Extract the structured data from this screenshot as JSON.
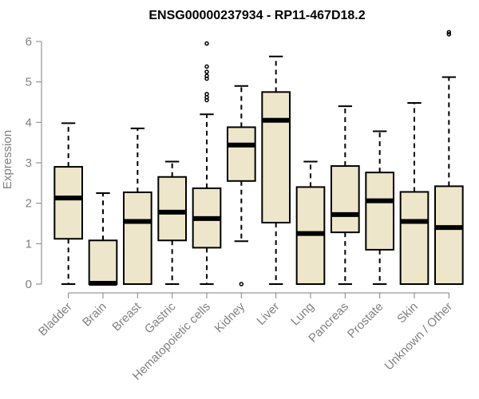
{
  "chart_data": {
    "type": "box",
    "title": "ENSG00000237934 - RP11-467D18.2",
    "ylabel": "Expression",
    "ylim": [
      0,
      6
    ],
    "yticks": [
      "0",
      "1",
      "2",
      "3",
      "4",
      "5",
      "6"
    ],
    "grid": false,
    "box_fill": "#ede6ca",
    "box_stroke": "#000000",
    "categories": [
      "Bladder",
      "Brain",
      "Breast",
      "Gastric",
      "Hematopoietic cells",
      "Kidney",
      "Liver",
      "Lung",
      "Pancreas",
      "Prostate",
      "Skin",
      "Unknown / Other"
    ],
    "boxes": [
      {
        "whisker_low": 0,
        "q1": 1.12,
        "median": 2.13,
        "q3": 2.9,
        "whisker_high": 3.98,
        "outliers": []
      },
      {
        "whisker_low": 0,
        "q1": 0,
        "median": 0.02,
        "q3": 1.08,
        "whisker_high": 2.25,
        "outliers": []
      },
      {
        "whisker_low": 0,
        "q1": 0,
        "median": 1.55,
        "q3": 2.27,
        "whisker_high": 3.85,
        "outliers": []
      },
      {
        "whisker_low": 0,
        "q1": 1.08,
        "median": 1.78,
        "q3": 2.65,
        "whisker_high": 3.03,
        "outliers": []
      },
      {
        "whisker_low": 0,
        "q1": 0.9,
        "median": 1.62,
        "q3": 2.37,
        "whisker_high": 4.2,
        "outliers": [
          4.55,
          4.62,
          4.7,
          5.08,
          5.15,
          5.25,
          5.38,
          5.95
        ]
      },
      {
        "whisker_low": 1.06,
        "q1": 2.55,
        "median": 3.44,
        "q3": 3.88,
        "whisker_high": 4.9,
        "outliers": [
          0
        ]
      },
      {
        "whisker_low": 0,
        "q1": 1.52,
        "median": 4.05,
        "q3": 4.75,
        "whisker_high": 5.63,
        "outliers": []
      },
      {
        "whisker_low": 0,
        "q1": 0,
        "median": 1.25,
        "q3": 2.4,
        "whisker_high": 3.03,
        "outliers": []
      },
      {
        "whisker_low": 0,
        "q1": 1.28,
        "median": 1.72,
        "q3": 2.92,
        "whisker_high": 4.4,
        "outliers": []
      },
      {
        "whisker_low": 0,
        "q1": 0.85,
        "median": 2.06,
        "q3": 2.76,
        "whisker_high": 3.78,
        "outliers": []
      },
      {
        "whisker_low": 0,
        "q1": 0,
        "median": 1.55,
        "q3": 2.28,
        "whisker_high": 4.48,
        "outliers": []
      },
      {
        "whisker_low": 0,
        "q1": 0,
        "median": 1.4,
        "q3": 2.42,
        "whisker_high": 5.12,
        "outliers": [
          6.18,
          6.23
        ]
      }
    ]
  }
}
